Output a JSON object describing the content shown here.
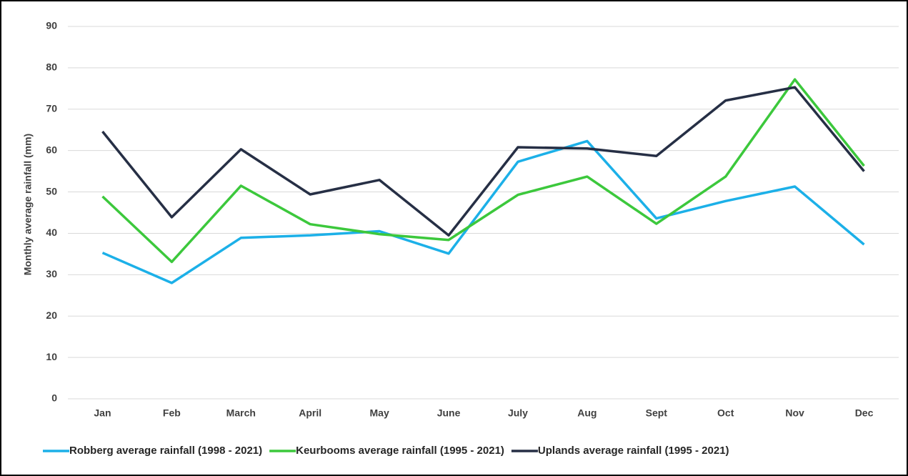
{
  "chart_data": {
    "type": "line",
    "y_label": "Monthly average rainfall (mm)",
    "categories": [
      "Jan",
      "Feb",
      "March",
      "April",
      "May",
      "June",
      "July",
      "Aug",
      "Sept",
      "Oct",
      "Nov",
      "Dec"
    ],
    "series": [
      {
        "name": "Robberg average rainfall (1998 - 2021)",
        "color": "#1cb0e8",
        "values": [
          35.3,
          28.0,
          38.9,
          39.5,
          40.5,
          35.1,
          57.3,
          62.3,
          43.6,
          47.8,
          51.3,
          37.3
        ]
      },
      {
        "name": "Keurbooms average rainfall (1995 - 2021)",
        "color": "#3cc83c",
        "values": [
          48.9,
          33.1,
          51.5,
          42.2,
          39.8,
          38.4,
          49.3,
          53.7,
          42.3,
          53.7,
          77.2,
          56.3
        ]
      },
      {
        "name": "Uplands average rainfall (1995 - 2021)",
        "color": "#262f45",
        "values": [
          64.6,
          43.9,
          60.3,
          49.4,
          52.9,
          39.5,
          60.8,
          60.5,
          58.7,
          72.1,
          75.3,
          55.0
        ]
      }
    ],
    "ylim": [
      0,
      90
    ],
    "yticks": [
      0,
      10,
      20,
      30,
      40,
      50,
      60,
      70,
      80,
      90
    ],
    "grid": true,
    "legend": "bottom"
  }
}
